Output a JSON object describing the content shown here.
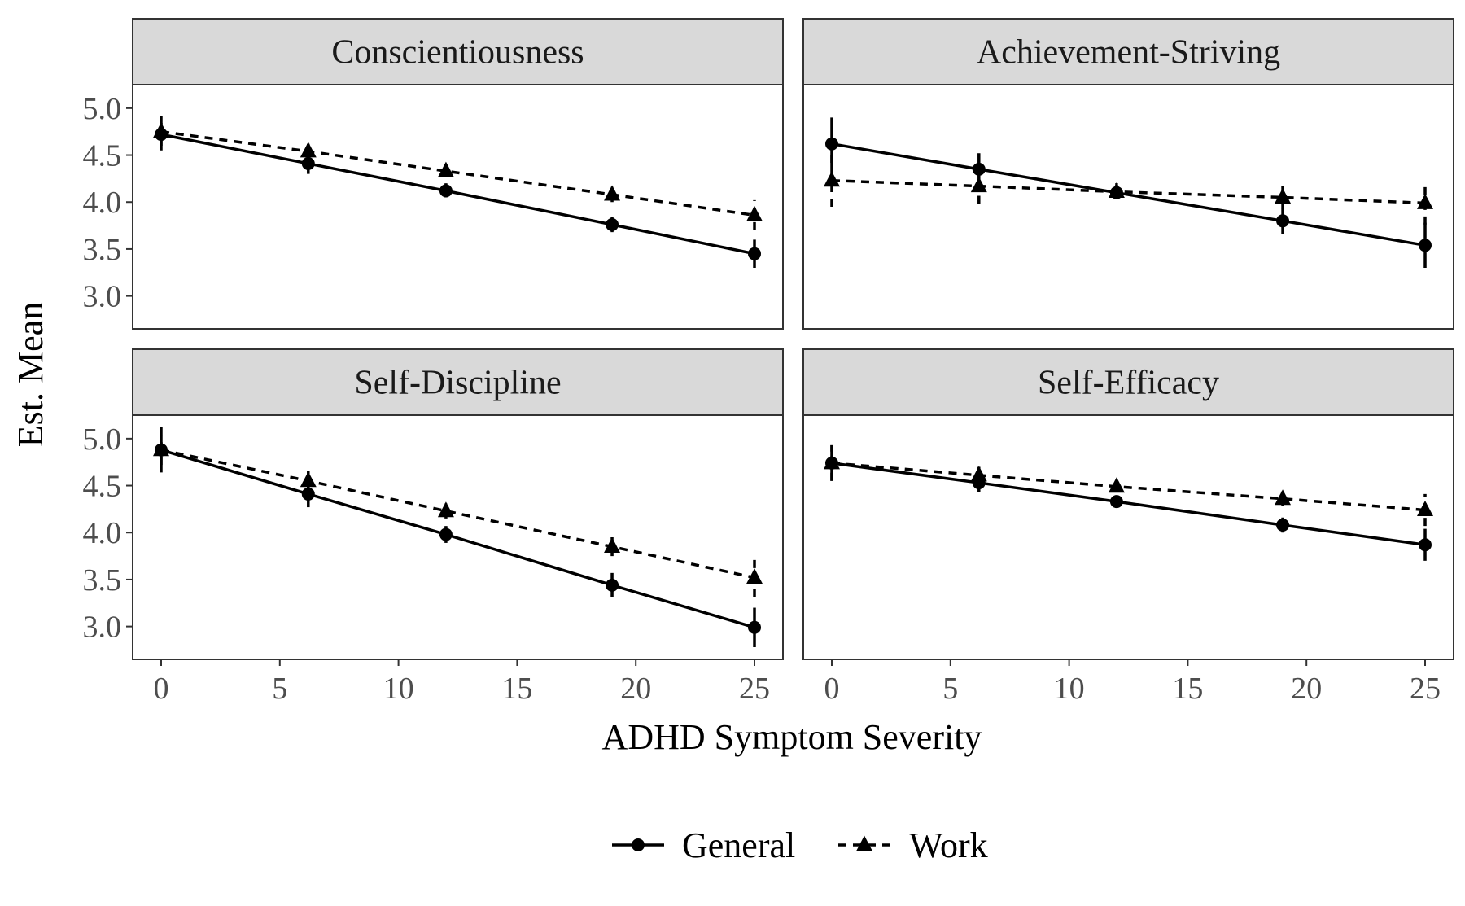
{
  "chart_data": {
    "type": "line",
    "xlabel": "ADHD Symptom Severity",
    "ylabel": "Est. Mean",
    "x_ticks": [
      "0",
      "5",
      "10",
      "15",
      "20",
      "25"
    ],
    "x_tick_values": [
      0,
      5,
      10,
      15,
      20,
      25
    ],
    "y_ticks": [
      "3.0",
      "3.5",
      "4.0",
      "4.5",
      "5.0"
    ],
    "y_tick_values": [
      3.0,
      3.5,
      4.0,
      4.5,
      5.0
    ],
    "xlim": [
      -1.2,
      26.2
    ],
    "ylim": [
      2.65,
      5.25
    ],
    "grid": false,
    "legend_position": "bottom",
    "legend": [
      {
        "name": "General",
        "marker": "circle",
        "line": "solid"
      },
      {
        "name": "Work",
        "marker": "triangle",
        "line": "dashed"
      }
    ],
    "x": [
      0,
      6.2,
      12,
      19,
      25
    ],
    "panels": [
      {
        "title": "Conscientiousness",
        "series": [
          {
            "name": "General",
            "values": [
              4.72,
              4.41,
              4.12,
              3.76,
              3.45
            ],
            "lower": [
              4.55,
              4.3,
              4.05,
              3.68,
              3.3
            ],
            "upper": [
              4.92,
              4.52,
              4.2,
              3.84,
              3.6
            ]
          },
          {
            "name": "Work",
            "values": [
              4.75,
              4.54,
              4.33,
              4.08,
              3.86
            ],
            "lower": [
              4.6,
              4.45,
              4.27,
              4.0,
              3.7
            ],
            "upper": [
              4.9,
              4.62,
              4.4,
              4.16,
              4.02
            ]
          }
        ]
      },
      {
        "title": "Achievement-Striving",
        "series": [
          {
            "name": "General",
            "values": [
              4.62,
              4.35,
              4.1,
              3.8,
              3.54
            ],
            "lower": [
              4.35,
              4.18,
              4.03,
              3.66,
              3.3
            ],
            "upper": [
              4.9,
              4.52,
              4.18,
              3.94,
              3.78
            ]
          },
          {
            "name": "Work",
            "values": [
              4.23,
              4.17,
              4.11,
              4.05,
              3.99
            ],
            "lower": [
              3.95,
              3.98,
              4.03,
              3.93,
              3.76
            ],
            "upper": [
              4.5,
              4.36,
              4.2,
              4.17,
              4.2
            ]
          }
        ]
      },
      {
        "title": "Self-Discipline",
        "series": [
          {
            "name": "General",
            "values": [
              4.88,
              4.41,
              3.98,
              3.44,
              2.99
            ],
            "lower": [
              4.64,
              4.27,
              3.89,
              3.31,
              2.78
            ],
            "upper": [
              5.12,
              4.55,
              4.07,
              3.57,
              3.2
            ]
          },
          {
            "name": "Work",
            "values": [
              4.88,
              4.55,
              4.23,
              3.85,
              3.52
            ],
            "lower": [
              4.72,
              4.44,
              4.15,
              3.75,
              3.31
            ],
            "upper": [
              5.04,
              4.66,
              4.31,
              3.95,
              3.72
            ]
          }
        ]
      },
      {
        "title": "Self-Efficacy",
        "series": [
          {
            "name": "General",
            "values": [
              4.74,
              4.53,
              4.33,
              4.08,
              3.87
            ],
            "lower": [
              4.55,
              4.43,
              4.27,
              4.0,
              3.7
            ],
            "upper": [
              4.93,
              4.63,
              4.39,
              4.16,
              4.04
            ]
          },
          {
            "name": "Work",
            "values": [
              4.74,
              4.61,
              4.49,
              4.36,
              4.24
            ],
            "lower": [
              4.55,
              4.52,
              4.43,
              4.28,
              4.07
            ],
            "upper": [
              4.93,
              4.7,
              4.55,
              4.44,
              4.41
            ]
          }
        ]
      }
    ]
  }
}
